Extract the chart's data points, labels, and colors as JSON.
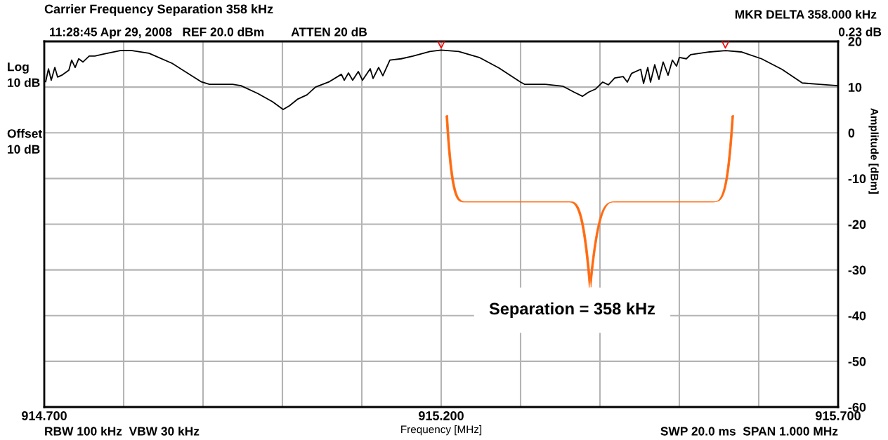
{
  "chart_data": {
    "type": "line",
    "title": "Carrier Frequency Separation 358 kHz",
    "subtitle": "11:28:45 Apr 29, 2008   REF 20.0 dBm        ATTEN 20 dB",
    "xlabel": "Frequency [MHz]",
    "ylabel": "Amplitude [dBm]",
    "annotations": [
      "MKR DELTA 358.000 kHz",
      "0.23 dB",
      "Log\n10 dB",
      "Offset\n10 dB",
      "RBW 100 kHz  VBW 30 kHz",
      "SWP 20.0 ms  SPAN 1.000 MHz",
      "Separation = 358 kHz"
    ],
    "series": [
      {
        "color": "#000000",
        "x": [
          914.7018,
          914.7053,
          914.7088,
          914.7133,
          914.7168,
          914.7221,
          914.731,
          914.7345,
          914.7389,
          914.7434,
          914.7487,
          914.7566,
          914.7637,
          914.7743,
          914.7956,
          914.8106,
          914.8319,
          914.8611,
          914.8973,
          914.908,
          914.9372,
          914.9478,
          914.969,
          914.9876,
          915.0009,
          915.0088,
          915.0195,
          915.031,
          915.0416,
          915.0593,
          915.0743,
          915.0779,
          915.0832,
          915.0885,
          915.0956,
          915.1009,
          915.1106,
          915.1142,
          915.1212,
          915.1265,
          915.1354,
          915.1496,
          915.1646,
          915.1858,
          915.2,
          915.2221,
          915.2478,
          915.2726,
          915.3,
          915.3053,
          915.331,
          915.3531,
          915.3673,
          915.3779,
          915.3858,
          915.3947,
          915.4035,
          915.4106,
          915.4186,
          915.4292,
          915.4345,
          915.4398,
          915.4513,
          915.4549,
          915.4602,
          915.4637,
          915.469,
          915.4743,
          915.4796,
          915.4858,
          915.4912,
          915.4965,
          915.5,
          915.5088,
          915.5142,
          915.5381,
          915.5584,
          915.5779,
          915.6035,
          915.6292,
          915.6549,
          915.6761,
          915.7
        ],
        "values": [
          11.2,
          14.0,
          11.5,
          14.3,
          12.2,
          12.6,
          13.7,
          15.9,
          14.3,
          16.2,
          15.5,
          16.8,
          16.8,
          17.2,
          18.0,
          18.0,
          17.4,
          15.2,
          11.2,
          10.6,
          10.6,
          10.3,
          8.6,
          6.8,
          5.1,
          5.9,
          7.4,
          8.3,
          10.0,
          11.2,
          12.8,
          11.5,
          13.1,
          11.5,
          13.4,
          11.5,
          14.0,
          11.9,
          14.3,
          12.5,
          15.9,
          16.2,
          16.8,
          17.8,
          18.1,
          17.8,
          16.5,
          14.2,
          11.1,
          10.6,
          10.6,
          10.2,
          8.9,
          8.0,
          8.9,
          9.6,
          11.1,
          10.5,
          12.0,
          12.3,
          11.1,
          13.0,
          13.9,
          10.8,
          14.3,
          11.1,
          14.9,
          11.7,
          15.5,
          12.6,
          15.9,
          14.6,
          16.5,
          16.2,
          17.1,
          17.7,
          18.0,
          17.7,
          16.2,
          13.9,
          10.9,
          10.6,
          10.3
        ]
      },
      {
        "type": "scatter",
        "marker": "triangle",
        "color": "#ff0000",
        "x": [
          915.2,
          915.558
        ],
        "values": [
          19.3,
          19.3
        ]
      }
    ],
    "xlim": [
      914.7,
      915.7
    ],
    "xticks": [
      {
        "value": 914.7,
        "label": "914.700"
      },
      {
        "value": 914.8,
        "label": null
      },
      {
        "value": 914.9,
        "label": null
      },
      {
        "value": 915.0,
        "label": null
      },
      {
        "value": 915.1,
        "label": null
      },
      {
        "value": 915.2,
        "label": "915.200"
      },
      {
        "value": 915.3,
        "label": null
      },
      {
        "value": 915.4,
        "label": null
      },
      {
        "value": 915.5,
        "label": null
      },
      {
        "value": 915.6,
        "label": null
      },
      {
        "value": 915.7,
        "label": "915.700"
      }
    ],
    "ylim": [
      -60,
      20
    ],
    "yticks": [
      -60,
      -50,
      -40,
      -30,
      -20,
      -10,
      0,
      10,
      20
    ],
    "grid": true,
    "marker": "none",
    "line_style": "solid"
  }
}
